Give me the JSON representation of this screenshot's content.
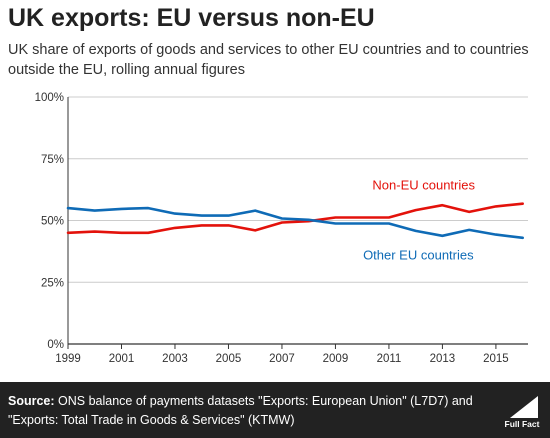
{
  "title": "UK exports: EU versus non-EU",
  "subtitle": "UK share of exports of goods and services to other EU countries and to countries outside the EU, rolling annual figures",
  "footer": {
    "source_label": "Source:",
    "source_text": " ONS balance of payments datasets \"Exports: European Union\" (L7D7) and \"Exports: Total Trade in Goods & Services\" (KTMW)",
    "logo_text": "Full Fact"
  },
  "colors": {
    "non_eu": "#e3120b",
    "eu": "#0f6bb6",
    "axis": "#333333",
    "grid": "#cccccc"
  },
  "chart_data": {
    "type": "line",
    "x": [
      1999,
      2000,
      2001,
      2002,
      2003,
      2004,
      2005,
      2006,
      2007,
      2008,
      2009,
      2010,
      2011,
      2012,
      2013,
      2014,
      2015,
      2016
    ],
    "xticks": [
      "1999",
      "2001",
      "2003",
      "2005",
      "2007",
      "2009",
      "2011",
      "2013",
      "2015"
    ],
    "yticks": [
      "0%",
      "25%",
      "50%",
      "75%",
      "100%"
    ],
    "ylim": [
      0,
      100
    ],
    "xlim": [
      1999,
      2016.2
    ],
    "grid": true,
    "series": [
      {
        "name": "Non-EU countries",
        "values": [
          45,
          45.5,
          45,
          45,
          47,
          48,
          48,
          46,
          49.2,
          49.7,
          51.2,
          51.2,
          51.2,
          54.2,
          56.2,
          53.5,
          55.7,
          56.8
        ]
      },
      {
        "name": "Other EU countries",
        "values": [
          55,
          54,
          54.7,
          55,
          52.8,
          52,
          52,
          54,
          50.8,
          50.3,
          48.8,
          48.8,
          48.8,
          45.8,
          43.8,
          46.2,
          44.3,
          43
        ]
      }
    ]
  }
}
